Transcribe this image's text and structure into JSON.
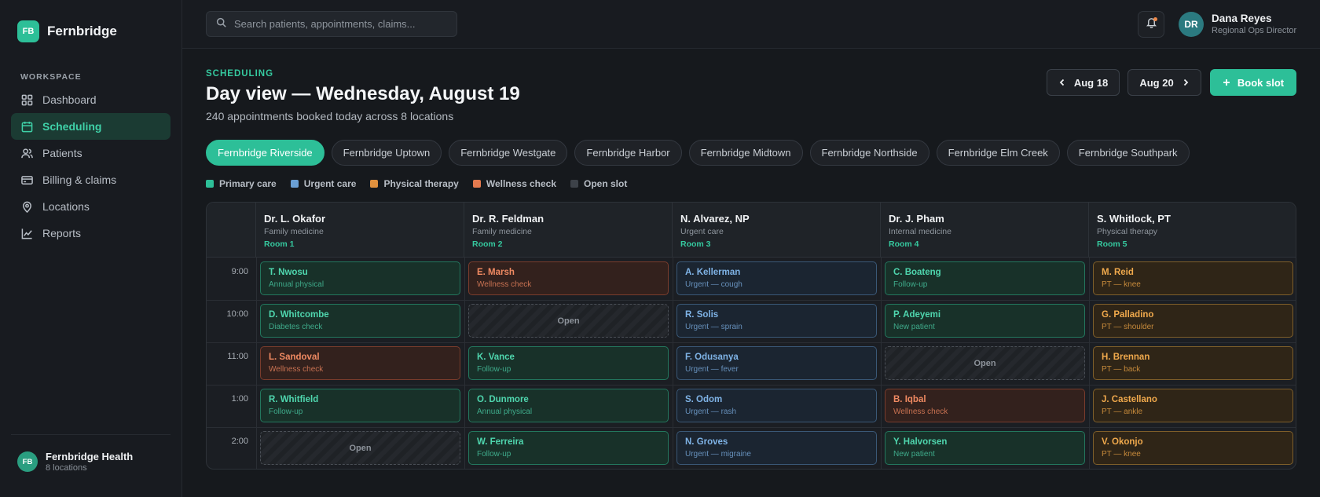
{
  "brand": {
    "logo": "FB",
    "name": "Fernbridge"
  },
  "sidebar": {
    "section": "WORKSPACE",
    "items": [
      {
        "label": "Dashboard",
        "icon": "grid-icon",
        "active": false
      },
      {
        "label": "Scheduling",
        "icon": "calendar-icon",
        "active": true
      },
      {
        "label": "Patients",
        "icon": "users-icon",
        "active": false
      },
      {
        "label": "Billing & claims",
        "icon": "credit-card-icon",
        "active": false
      },
      {
        "label": "Locations",
        "icon": "map-pin-icon",
        "active": false
      },
      {
        "label": "Reports",
        "icon": "line-chart-icon",
        "active": false
      }
    ],
    "footer": {
      "avatar": "FB",
      "name": "Fernbridge Health",
      "sub": "8 locations"
    }
  },
  "topbar": {
    "search_placeholder": "Search patients, appointments, claims...",
    "user": {
      "initials": "DR",
      "name": "Dana Reyes",
      "role": "Regional Ops Director"
    }
  },
  "header": {
    "eyebrow": "SCHEDULING",
    "title": "Day view — Wednesday, August 19",
    "subtitle": "240 appointments booked today across 8 locations",
    "prev_label": "Aug 18",
    "next_label": "Aug 20",
    "book_label": "Book slot"
  },
  "locations": [
    "Fernbridge Riverside",
    "Fernbridge Uptown",
    "Fernbridge Westgate",
    "Fernbridge Harbor",
    "Fernbridge Midtown",
    "Fernbridge Northside",
    "Fernbridge Elm Creek",
    "Fernbridge Southpark"
  ],
  "active_location": 0,
  "legend": [
    {
      "label": "Primary care",
      "color": "#2dbf98"
    },
    {
      "label": "Urgent care",
      "color": "#6a9fd4"
    },
    {
      "label": "Physical therapy",
      "color": "#e0913e"
    },
    {
      "label": "Wellness check",
      "color": "#e47a4f"
    },
    {
      "label": "Open slot",
      "color": "#3d4249"
    }
  ],
  "providers": [
    {
      "name": "Dr. L. Okafor",
      "specialty": "Family medicine",
      "room": "Room 1"
    },
    {
      "name": "Dr. R. Feldman",
      "specialty": "Family medicine",
      "room": "Room 2"
    },
    {
      "name": "N. Alvarez, NP",
      "specialty": "Urgent care",
      "room": "Room 3"
    },
    {
      "name": "Dr. J. Pham",
      "specialty": "Internal medicine",
      "room": "Room 4"
    },
    {
      "name": "S. Whitlock, PT",
      "specialty": "Physical therapy",
      "room": "Room 5"
    }
  ],
  "times": [
    "9:00",
    "10:00",
    "11:00",
    "1:00",
    "2:00"
  ],
  "open_label": "Open",
  "appointments": [
    [
      {
        "type": "primary",
        "patient": "T. Nwosu",
        "reason": "Annual physical"
      },
      {
        "type": "wellness",
        "patient": "E. Marsh",
        "reason": "Wellness check"
      },
      {
        "type": "urgent",
        "patient": "A. Kellerman",
        "reason": "Urgent — cough"
      },
      {
        "type": "primary",
        "patient": "C. Boateng",
        "reason": "Follow-up"
      },
      {
        "type": "pt",
        "patient": "M. Reid",
        "reason": "PT — knee"
      }
    ],
    [
      {
        "type": "primary",
        "patient": "D. Whitcombe",
        "reason": "Diabetes check"
      },
      {
        "type": "open",
        "patient": "Open",
        "reason": ""
      },
      {
        "type": "urgent",
        "patient": "R. Solis",
        "reason": "Urgent — sprain"
      },
      {
        "type": "primary",
        "patient": "P. Adeyemi",
        "reason": "New patient"
      },
      {
        "type": "pt",
        "patient": "G. Palladino",
        "reason": "PT — shoulder"
      }
    ],
    [
      {
        "type": "wellness",
        "patient": "L. Sandoval",
        "reason": "Wellness check"
      },
      {
        "type": "primary",
        "patient": "K. Vance",
        "reason": "Follow-up"
      },
      {
        "type": "urgent",
        "patient": "F. Odusanya",
        "reason": "Urgent — fever"
      },
      {
        "type": "open",
        "patient": "Open",
        "reason": ""
      },
      {
        "type": "pt",
        "patient": "H. Brennan",
        "reason": "PT — back"
      }
    ],
    [
      {
        "type": "primary",
        "patient": "R. Whitfield",
        "reason": "Follow-up"
      },
      {
        "type": "primary",
        "patient": "O. Dunmore",
        "reason": "Annual physical"
      },
      {
        "type": "urgent",
        "patient": "S. Odom",
        "reason": "Urgent — rash"
      },
      {
        "type": "wellness",
        "patient": "B. Iqbal",
        "reason": "Wellness check"
      },
      {
        "type": "pt",
        "patient": "J. Castellano",
        "reason": "PT — ankle"
      }
    ],
    [
      {
        "type": "open",
        "patient": "Open",
        "reason": ""
      },
      {
        "type": "primary",
        "patient": "W. Ferreira",
        "reason": "Follow-up"
      },
      {
        "type": "urgent",
        "patient": "N. Groves",
        "reason": "Urgent — migraine"
      },
      {
        "type": "primary",
        "patient": "Y. Halvorsen",
        "reason": "New patient"
      },
      {
        "type": "pt",
        "patient": "V. Okonjo",
        "reason": "PT — knee"
      }
    ]
  ]
}
